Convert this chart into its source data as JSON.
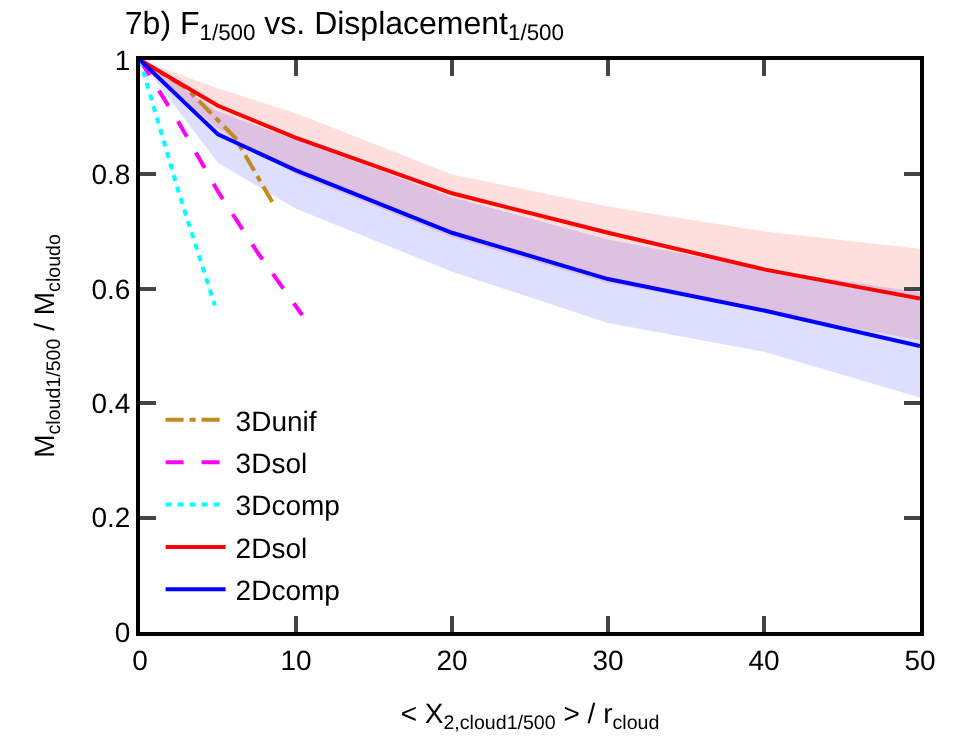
{
  "chart_data": {
    "type": "line",
    "title": "7b) F$_{1/500}$ vs. Displacement$_{1/500}$",
    "xlabel": "< X$_{2,cloud}$$_{1/500}$ > / r$_{cloud}$",
    "ylabel": "M$_{cloud}$$_{1/500}$ / M$_{cloud}$$_{o}$",
    "xlim": [
      0,
      50
    ],
    "xticks": [
      0,
      10,
      20,
      30,
      40,
      50
    ],
    "ylim": [
      0,
      1
    ],
    "yticks": [
      0,
      0.2,
      0.4,
      0.6,
      0.8,
      1
    ],
    "legend": "bottom left",
    "series": [
      {
        "name": "3Dunif",
        "color": "#c08a20",
        "line_style": "dashdot",
        "x": [
          0,
          3,
          6.1,
          8.6
        ],
        "values": [
          1,
          0.95,
          0.864,
          0.746
        ]
      },
      {
        "name": "3Dsol",
        "color": "#ff00ff",
        "line_style": "dashed",
        "x": [
          0,
          2.5,
          5,
          7.5,
          10.4
        ],
        "values": [
          1,
          0.89,
          0.77,
          0.665,
          0.554
        ]
      },
      {
        "name": "3Dcomp",
        "color": "#00ffff",
        "line_style": "dotted",
        "x": [
          0,
          2.5,
          4.8
        ],
        "values": [
          1,
          0.767,
          0.571
        ]
      },
      {
        "name": "2Dsol",
        "color": "#ff0000",
        "line_style": "solid",
        "x": [
          0,
          5,
          10,
          20,
          30,
          40,
          50
        ],
        "values": [
          1,
          0.92,
          0.864,
          0.767,
          0.698,
          0.634,
          0.583
        ],
        "lower": [
          1,
          0.88,
          0.8,
          0.69,
          0.61,
          0.56,
          0.51
        ],
        "upper": [
          1,
          0.95,
          0.907,
          0.8,
          0.744,
          0.7,
          0.67
        ]
      },
      {
        "name": "2Dcomp",
        "color": "#0000ff",
        "line_style": "solid",
        "x": [
          0,
          5,
          10,
          20,
          30,
          40,
          50
        ],
        "values": [
          1,
          0.87,
          0.807,
          0.698,
          0.617,
          0.562,
          0.5
        ],
        "lower": [
          1,
          0.82,
          0.74,
          0.63,
          0.54,
          0.49,
          0.41
        ],
        "upper": [
          1,
          0.91,
          0.86,
          0.76,
          0.686,
          0.634,
          0.594
        ]
      }
    ]
  }
}
